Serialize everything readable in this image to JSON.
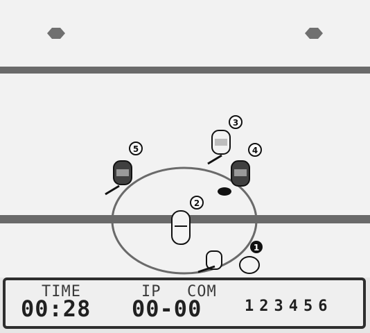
{
  "hud": {
    "time_label": "TIME",
    "time_value": "00:28",
    "team1_label": "IP",
    "team2_label": "COM",
    "score_value": "00-00",
    "periods": [
      "1",
      "2",
      "3",
      "4",
      "5",
      "6"
    ]
  },
  "players": [
    {
      "number": "1"
    },
    {
      "number": "2"
    },
    {
      "number": "3"
    },
    {
      "number": "4"
    },
    {
      "number": "5"
    }
  ],
  "colors": {
    "ice": "#f2f2f2",
    "line": "#6a6a6a",
    "dark": "#202020"
  }
}
